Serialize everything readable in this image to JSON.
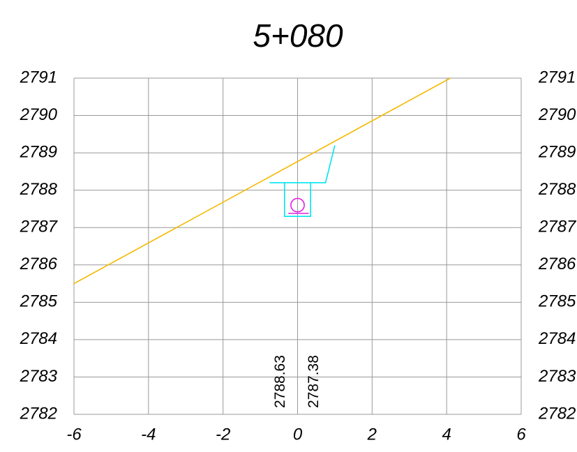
{
  "chart_data": {
    "type": "line",
    "title": "5+080",
    "xlim": [
      -6,
      6
    ],
    "xticks": [
      -6,
      -4,
      -2,
      0,
      2,
      4,
      6
    ],
    "ylim": [
      2782,
      2791
    ],
    "yticks": [
      2782,
      2783,
      2784,
      2785,
      2786,
      2787,
      2788,
      2789,
      2790,
      2791
    ],
    "grid": true,
    "series": [
      {
        "color": "#f5b800",
        "x": [
          -6,
          4.1
        ],
        "values": [
          2785.5,
          2791
        ]
      },
      {
        "color": "#00e5ee",
        "x": [
          -0.75,
          0.75,
          1.0
        ],
        "values": [
          2788.2,
          2788.2,
          2789.2
        ]
      },
      {
        "color": "#00e5ee",
        "x": [
          -0.35,
          -0.35,
          0.35,
          0.35
        ],
        "values": [
          2788.2,
          2787.3,
          2787.3,
          2788.2
        ]
      },
      {
        "color": "#e020e0",
        "x": [
          -0.25,
          0.3
        ],
        "values": [
          2787.38,
          2787.38
        ]
      }
    ],
    "pipe": {
      "x": 0,
      "y": 2787.6,
      "r": 0.18,
      "color": "#e020e0"
    },
    "annotations": [
      {
        "text": "2788.63",
        "x": -0.45
      },
      {
        "text": "2787.38",
        "x": 0.45
      }
    ]
  }
}
